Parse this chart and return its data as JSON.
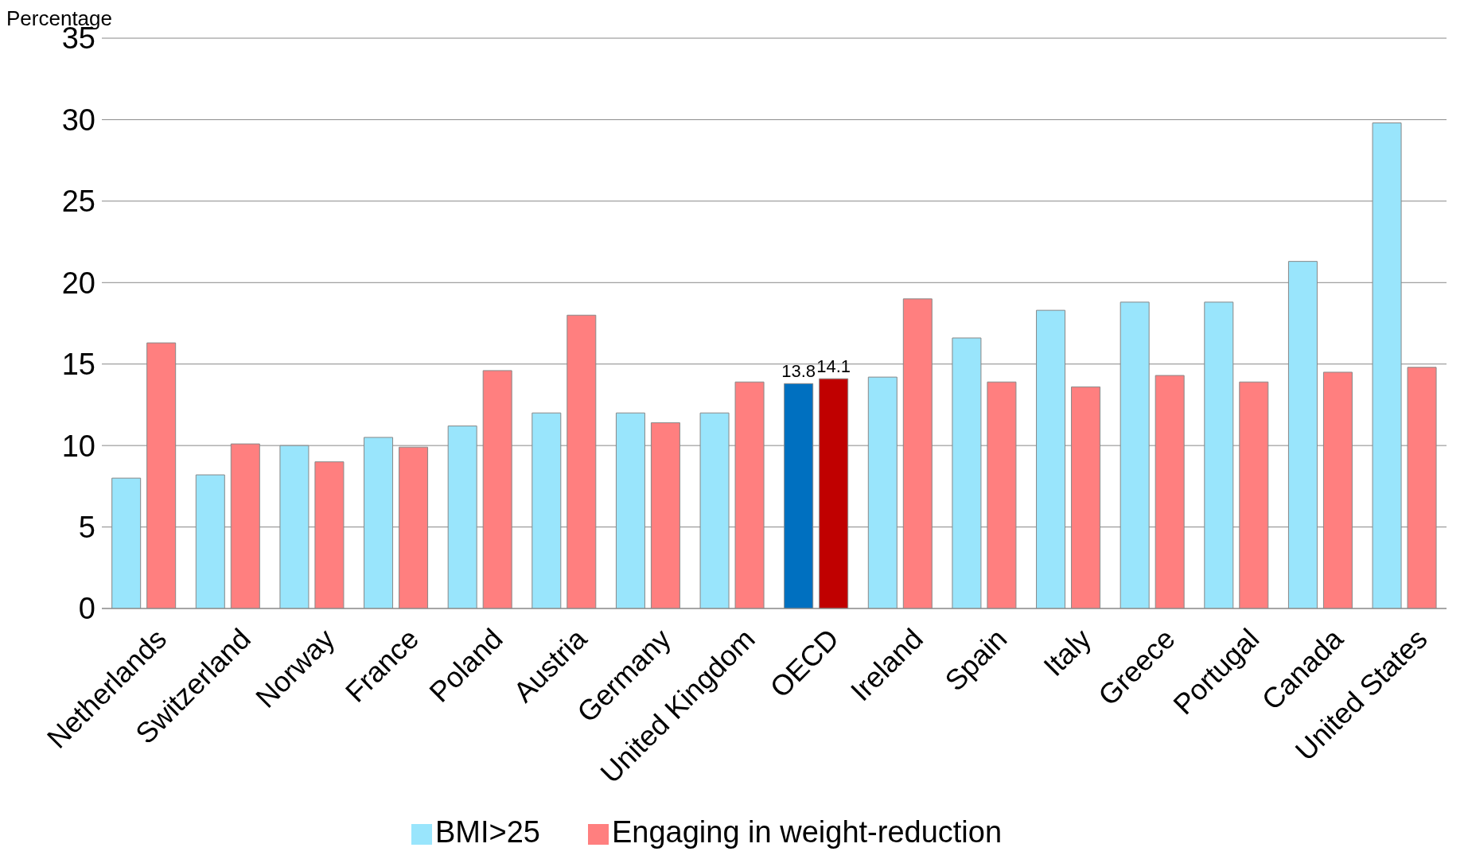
{
  "chart_data": {
    "type": "bar",
    "ylabel": "Percentage",
    "categories": [
      "Netherlands",
      "Switzerland",
      "Norway",
      "France",
      "Poland",
      "Austria",
      "Germany",
      "United Kingdom",
      "OECD",
      "Ireland",
      "Spain",
      "Italy",
      "Greece",
      "Portugal",
      "Canada",
      "United States"
    ],
    "series": [
      {
        "name": "BMI>25",
        "color": "#99e5fc",
        "colors": [
          "#99e5fc",
          "#99e5fc",
          "#99e5fc",
          "#99e5fc",
          "#99e5fc",
          "#99e5fc",
          "#99e5fc",
          "#99e5fc",
          "#0070c0",
          "#99e5fc",
          "#99e5fc",
          "#99e5fc",
          "#99e5fc",
          "#99e5fc",
          "#99e5fc",
          "#99e5fc"
        ],
        "values": [
          8.0,
          8.2,
          10.0,
          10.5,
          11.2,
          12.0,
          12.0,
          12.0,
          13.8,
          14.2,
          16.6,
          18.3,
          18.8,
          18.8,
          21.3,
          29.8
        ],
        "value_labels": [
          null,
          null,
          null,
          null,
          null,
          null,
          null,
          null,
          "13.8",
          null,
          null,
          null,
          null,
          null,
          null,
          null
        ]
      },
      {
        "name": "Engaging in weight-reduction",
        "color": "#ff7f7f",
        "colors": [
          "#ff7f7f",
          "#ff7f7f",
          "#ff7f7f",
          "#ff7f7f",
          "#ff7f7f",
          "#ff7f7f",
          "#ff7f7f",
          "#ff7f7f",
          "#c00000",
          "#ff7f7f",
          "#ff7f7f",
          "#ff7f7f",
          "#ff7f7f",
          "#ff7f7f",
          "#ff7f7f",
          "#ff7f7f"
        ],
        "values": [
          16.3,
          10.1,
          9.0,
          9.9,
          14.6,
          18.0,
          11.4,
          13.9,
          14.1,
          19.0,
          13.9,
          13.6,
          14.3,
          13.9,
          14.5,
          14.8
        ],
        "value_labels": [
          null,
          null,
          null,
          null,
          null,
          null,
          null,
          null,
          "14.1",
          null,
          null,
          null,
          null,
          null,
          null,
          null
        ]
      }
    ],
    "ylim": [
      0,
      35
    ],
    "yticks": [
      0,
      5,
      10,
      15,
      20,
      25,
      30,
      35
    ],
    "grid": "y",
    "legend": "bottom"
  }
}
